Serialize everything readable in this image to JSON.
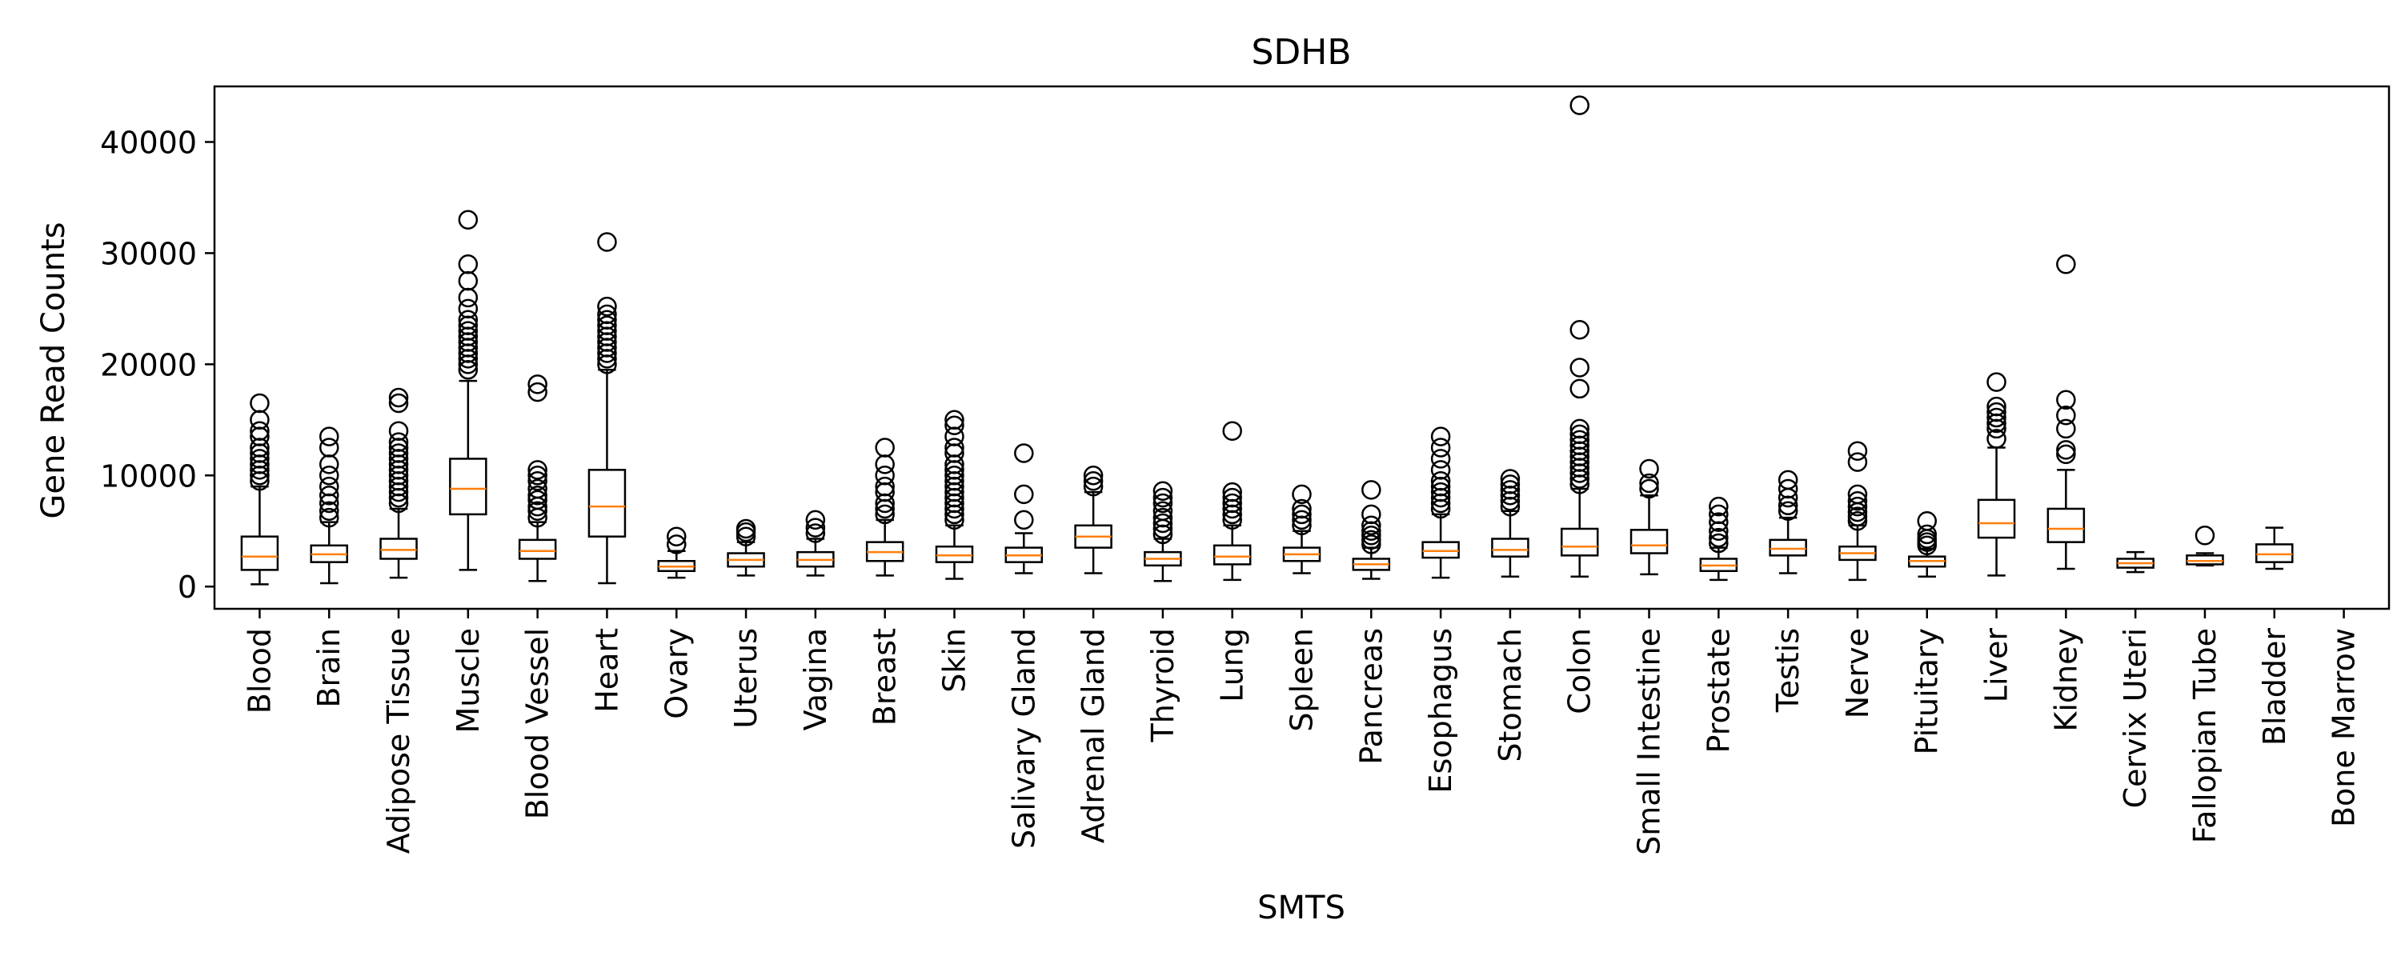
{
  "chart_data": {
    "type": "box",
    "title": "SDHB",
    "xlabel": "SMTS",
    "ylabel": "Gene Read Counts",
    "ylim": [
      -2000,
      45000
    ],
    "yticks": [
      0,
      10000,
      20000,
      30000,
      40000
    ],
    "grid": false,
    "colors": {
      "box": "#000000",
      "median": "#ff7f0e",
      "flier": "#000000"
    },
    "categories": [
      "Blood",
      "Brain",
      "Adipose Tissue",
      "Muscle",
      "Blood Vessel",
      "Heart",
      "Ovary",
      "Uterus",
      "Vagina",
      "Breast",
      "Skin",
      "Salivary Gland",
      "Adrenal Gland",
      "Thyroid",
      "Lung",
      "Spleen",
      "Pancreas",
      "Esophagus",
      "Stomach",
      "Colon",
      "Small Intestine",
      "Prostate",
      "Testis",
      "Nerve",
      "Pituitary",
      "Liver",
      "Kidney",
      "Cervix Uteri",
      "Fallopian Tube",
      "Bladder",
      "Bone Marrow"
    ],
    "boxes": [
      {
        "whislo": 200,
        "q1": 1500,
        "med": 2700,
        "q3": 4500,
        "whishi": 9000,
        "fliers": [
          9500,
          10000,
          10500,
          11000,
          11500,
          12000,
          12500,
          13500,
          14000,
          15000,
          16500
        ]
      },
      {
        "whislo": 300,
        "q1": 2200,
        "med": 2900,
        "q3": 3700,
        "whishi": 5800,
        "fliers": [
          6200,
          6800,
          7500,
          8200,
          9000,
          10000,
          11000,
          12500,
          13500
        ]
      },
      {
        "whislo": 800,
        "q1": 2500,
        "med": 3300,
        "q3": 4300,
        "whishi": 7000,
        "fliers": [
          7500,
          8000,
          8500,
          9000,
          9500,
          10000,
          10500,
          11000,
          11500,
          12000,
          12500,
          13000,
          14000,
          16500,
          17000
        ]
      },
      {
        "whislo": 1500,
        "q1": 6500,
        "med": 8800,
        "q3": 11500,
        "whishi": 18500,
        "fliers": [
          19500,
          20000,
          20500,
          21000,
          21500,
          22000,
          22500,
          23000,
          23500,
          24000,
          25000,
          26000,
          27500,
          29000,
          33000
        ]
      },
      {
        "whislo": 500,
        "q1": 2500,
        "med": 3200,
        "q3": 4200,
        "whishi": 5800,
        "fliers": [
          6200,
          6800,
          7200,
          7800,
          8200,
          8800,
          9500,
          10000,
          10500,
          17500,
          18200
        ]
      },
      {
        "whislo": 300,
        "q1": 4500,
        "med": 7200,
        "q3": 10500,
        "whishi": 19500,
        "fliers": [
          20000,
          20500,
          21000,
          21500,
          22000,
          22500,
          23000,
          23500,
          24000,
          24500,
          25200,
          31000
        ]
      },
      {
        "whislo": 800,
        "q1": 1400,
        "med": 1800,
        "q3": 2300,
        "whishi": 3200,
        "fliers": [
          3800,
          4500
        ]
      },
      {
        "whislo": 1000,
        "q1": 1800,
        "med": 2400,
        "q3": 3000,
        "whishi": 4000,
        "fliers": [
          4500,
          4900,
          5200
        ]
      },
      {
        "whislo": 1000,
        "q1": 1800,
        "med": 2400,
        "q3": 3100,
        "whishi": 4300,
        "fliers": [
          4800,
          5300,
          6000
        ]
      },
      {
        "whislo": 1000,
        "q1": 2300,
        "med": 3100,
        "q3": 4000,
        "whishi": 6000,
        "fliers": [
          6500,
          7000,
          7500,
          8500,
          9000,
          10000,
          11000,
          12500
        ]
      },
      {
        "whislo": 700,
        "q1": 2200,
        "med": 2800,
        "q3": 3600,
        "whishi": 5500,
        "fliers": [
          6000,
          6500,
          7000,
          7500,
          8000,
          8500,
          9000,
          9500,
          10000,
          10500,
          11000,
          12000,
          12500,
          13500,
          14500,
          15000
        ]
      },
      {
        "whislo": 1200,
        "q1": 2200,
        "med": 2800,
        "q3": 3500,
        "whishi": 4800,
        "fliers": [
          6000,
          8300,
          12000
        ]
      },
      {
        "whislo": 1200,
        "q1": 3500,
        "med": 4500,
        "q3": 5500,
        "whishi": 8500,
        "fliers": [
          9000,
          9500,
          10000
        ]
      },
      {
        "whislo": 500,
        "q1": 1900,
        "med": 2500,
        "q3": 3100,
        "whishi": 4300,
        "fliers": [
          4700,
          5200,
          5700,
          6200,
          6800,
          7500,
          8000,
          8600
        ]
      },
      {
        "whislo": 600,
        "q1": 2000,
        "med": 2700,
        "q3": 3700,
        "whishi": 5500,
        "fliers": [
          6000,
          6500,
          7000,
          7500,
          8000,
          8500,
          14000
        ]
      },
      {
        "whislo": 1200,
        "q1": 2300,
        "med": 2900,
        "q3": 3500,
        "whishi": 5000,
        "fliers": [
          5500,
          6000,
          6500,
          7000,
          8300
        ]
      },
      {
        "whislo": 700,
        "q1": 1500,
        "med": 2000,
        "q3": 2500,
        "whishi": 3500,
        "fliers": [
          3800,
          4200,
          4600,
          5000,
          5500,
          6500,
          8700
        ]
      },
      {
        "whislo": 800,
        "q1": 2600,
        "med": 3200,
        "q3": 4000,
        "whishi": 6500,
        "fliers": [
          7000,
          7500,
          8000,
          8500,
          9000,
          9500,
          10500,
          11500,
          12500,
          13500
        ]
      },
      {
        "whislo": 900,
        "q1": 2700,
        "med": 3300,
        "q3": 4300,
        "whishi": 6800,
        "fliers": [
          7200,
          7700,
          8200,
          8700,
          9200,
          9700
        ]
      },
      {
        "whislo": 900,
        "q1": 2800,
        "med": 3600,
        "q3": 5200,
        "whishi": 8800,
        "fliers": [
          9200,
          9700,
          10200,
          10700,
          11200,
          11700,
          12200,
          12700,
          13200,
          13700,
          14200,
          17800,
          19700,
          23100,
          43300
        ]
      },
      {
        "whislo": 1100,
        "q1": 3000,
        "med": 3700,
        "q3": 5100,
        "whishi": 8200,
        "fliers": [
          8800,
          9300,
          10600
        ]
      },
      {
        "whislo": 600,
        "q1": 1400,
        "med": 1900,
        "q3": 2500,
        "whishi": 3500,
        "fliers": [
          3900,
          4400,
          5000,
          5800,
          6500,
          7200
        ]
      },
      {
        "whislo": 1200,
        "q1": 2800,
        "med": 3400,
        "q3": 4200,
        "whishi": 6200,
        "fliers": [
          6800,
          7300,
          8000,
          8800,
          9600
        ]
      },
      {
        "whislo": 600,
        "q1": 2400,
        "med": 3000,
        "q3": 3600,
        "whishi": 5500,
        "fliers": [
          5900,
          6300,
          6700,
          7200,
          7700,
          8300,
          11200,
          12200
        ]
      },
      {
        "whislo": 900,
        "q1": 1800,
        "med": 2300,
        "q3": 2700,
        "whishi": 3400,
        "fliers": [
          3700,
          4000,
          4300,
          4700,
          5900
        ]
      },
      {
        "whislo": 1000,
        "q1": 4400,
        "med": 5700,
        "q3": 7800,
        "whishi": 12500,
        "fliers": [
          13300,
          14200,
          14700,
          15200,
          15700,
          16200,
          18400
        ]
      },
      {
        "whislo": 1600,
        "q1": 4000,
        "med": 5200,
        "q3": 7000,
        "whishi": 10500,
        "fliers": [
          11900,
          12300,
          14200,
          15400,
          16800,
          29000
        ]
      },
      {
        "whislo": 1300,
        "q1": 1700,
        "med": 2100,
        "q3": 2500,
        "whishi": 3100,
        "fliers": []
      },
      {
        "whislo": 1900,
        "q1": 2000,
        "med": 2300,
        "q3": 2800,
        "whishi": 3000,
        "fliers": [
          4600
        ]
      },
      {
        "whislo": 1600,
        "q1": 2200,
        "med": 2900,
        "q3": 3800,
        "whishi": 5300,
        "fliers": []
      },
      {
        "whislo": null,
        "q1": null,
        "med": null,
        "q3": null,
        "whishi": null,
        "fliers": []
      }
    ]
  }
}
